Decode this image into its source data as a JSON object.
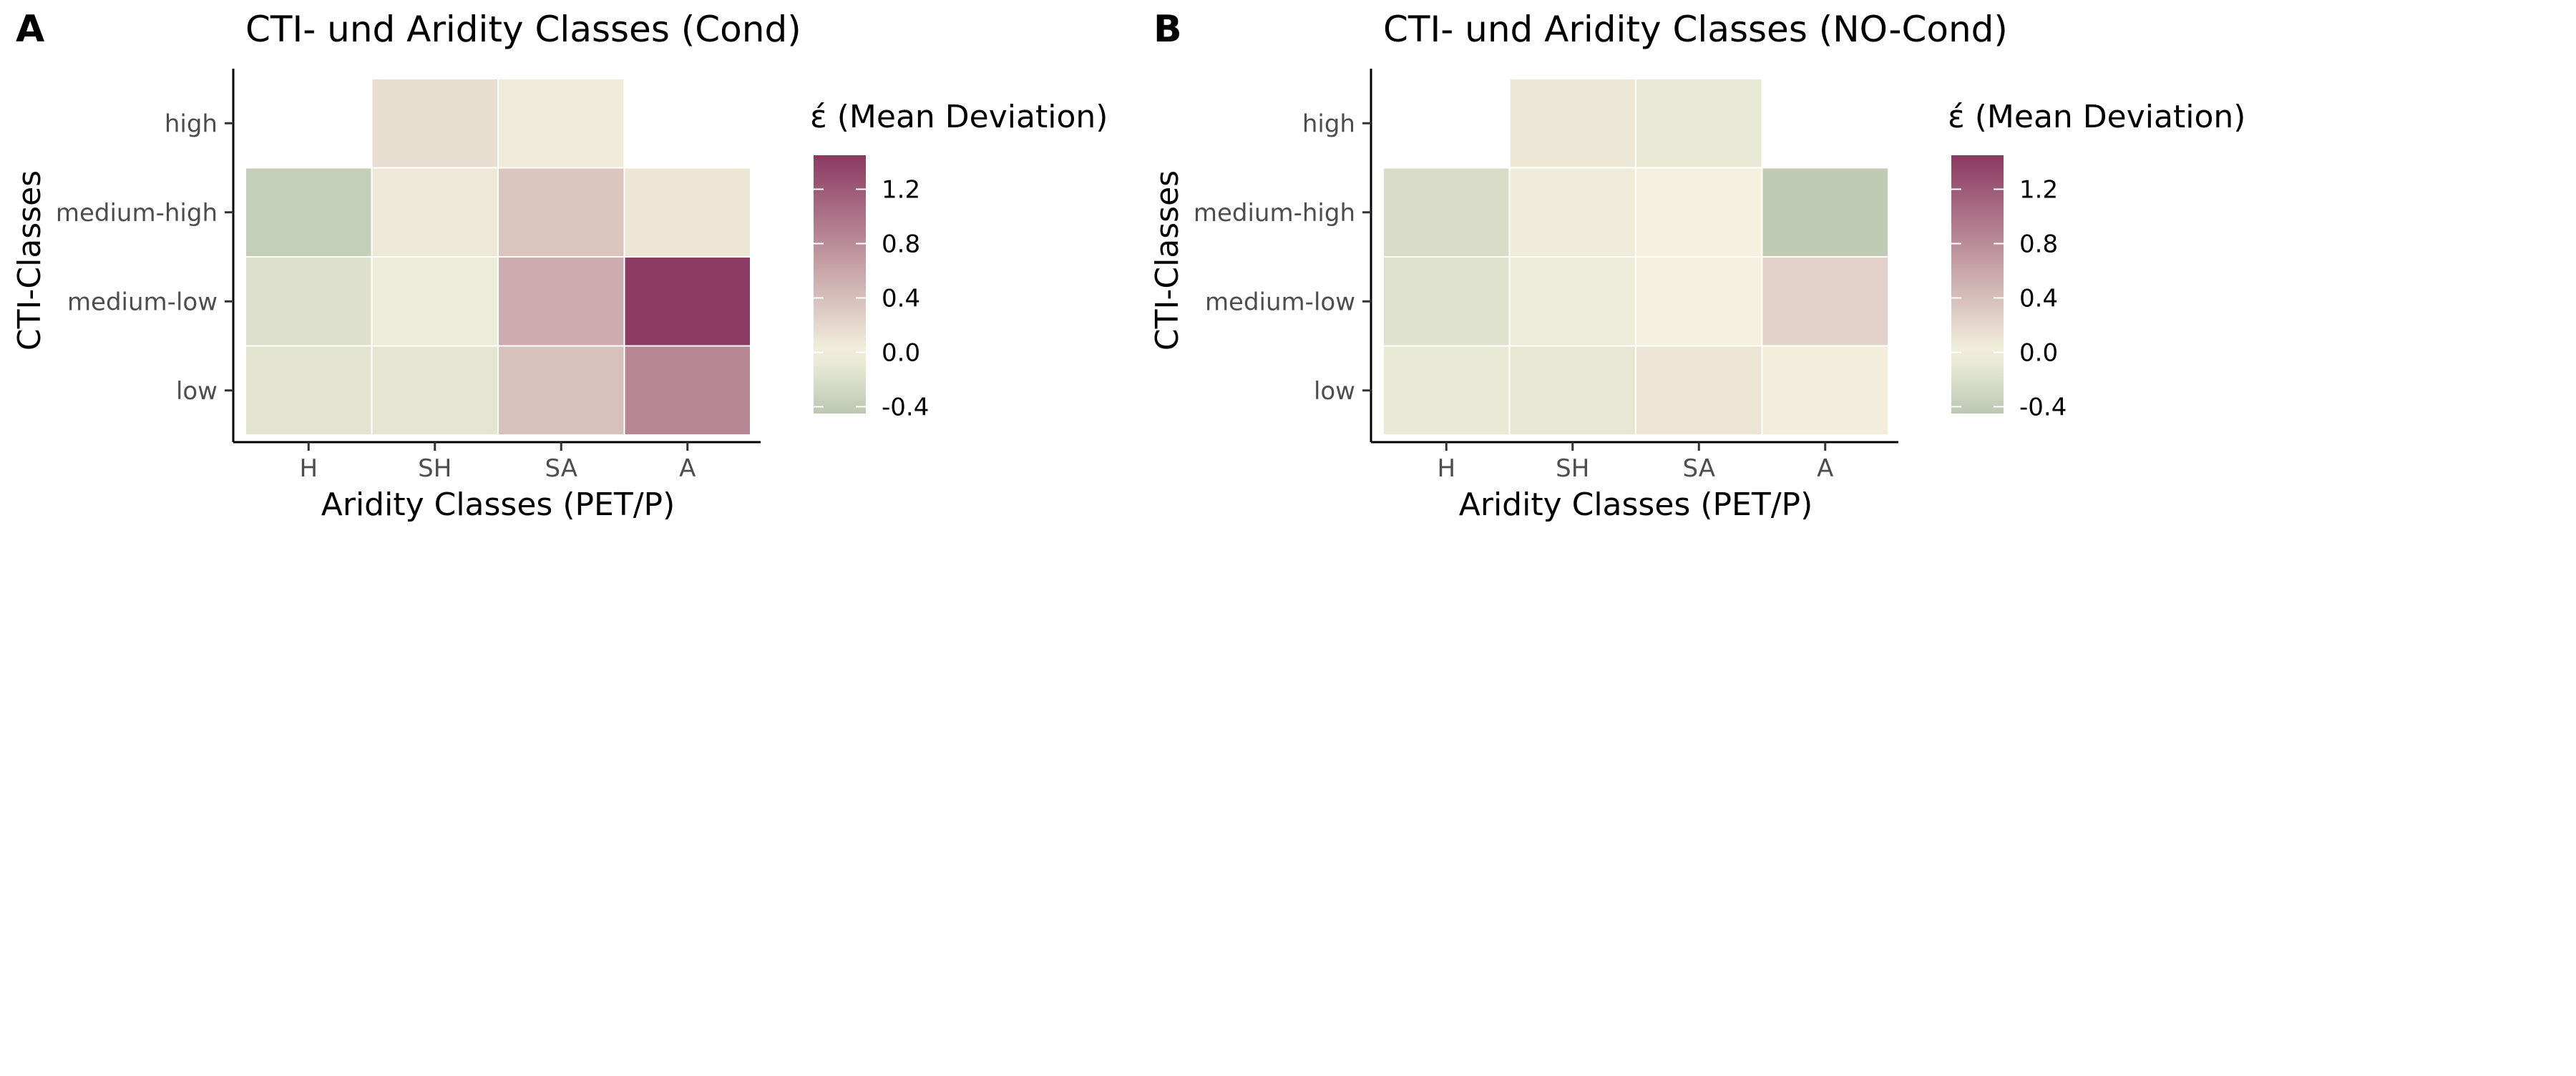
{
  "chart_data": [
    {
      "panel_tag": "A",
      "type": "heatmap",
      "title": "CTI- und Aridity Classes (Cond)",
      "xlabel": "Aridity Classes (PET/P)",
      "ylabel": "CTI-Classes",
      "x_categories": [
        "H",
        "SH",
        "SA",
        "A"
      ],
      "y_categories": [
        "high",
        "medium-high",
        "medium-low",
        "low"
      ],
      "values": [
        [
          null,
          0.15,
          0.05,
          null
        ],
        [
          -0.38,
          0.07,
          0.35,
          0.09
        ],
        [
          -0.18,
          -0.05,
          0.55,
          1.45
        ],
        [
          -0.14,
          -0.12,
          0.38,
          0.85
        ]
      ],
      "legend": {
        "title": "έ (Mean Deviation)",
        "ticks": [
          "1.2",
          "0.8",
          "0.4",
          "0.0",
          "-0.4"
        ],
        "range": [
          -0.45,
          1.45
        ],
        "colors": {
          "low": "#bcc7b2",
          "mid": "#f3f1dd",
          "high": "#8b3a62"
        }
      },
      "grid": false
    },
    {
      "panel_tag": "B",
      "type": "heatmap",
      "title": "CTI- und Aridity Classes (NO-Cond)",
      "xlabel": "Aridity Classes (PET/P)",
      "ylabel": "CTI-Classes",
      "x_categories": [
        "H",
        "SH",
        "SA",
        "A"
      ],
      "y_categories": [
        "high",
        "medium-high",
        "medium-low",
        "low"
      ],
      "values": [
        [
          null,
          0.08,
          -0.08,
          null
        ],
        [
          -0.22,
          0.05,
          0.0,
          -0.42
        ],
        [
          -0.16,
          -0.05,
          0.0,
          0.25
        ],
        [
          -0.08,
          -0.1,
          0.1,
          0.02
        ]
      ],
      "legend": {
        "title": "έ (Mean Deviation)",
        "ticks": [
          "1.2",
          "0.8",
          "0.4",
          "0.0",
          "-0.4"
        ],
        "range": [
          -0.45,
          1.45
        ],
        "colors": {
          "low": "#bcc7b2",
          "mid": "#f3f1dd",
          "high": "#8b3a62"
        }
      },
      "grid": false
    }
  ]
}
